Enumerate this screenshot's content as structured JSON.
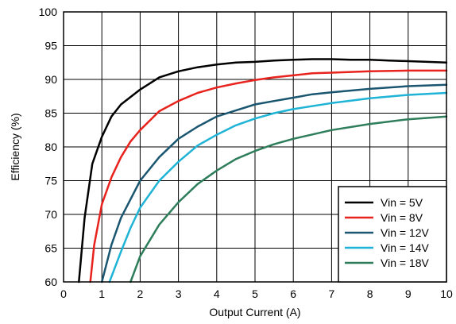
{
  "chart_data": {
    "type": "line",
    "title": "",
    "xlabel": "Output Current (A)",
    "ylabel": "Efficiency (%)",
    "xlim": [
      0,
      10
    ],
    "ylim": [
      60,
      100
    ],
    "x_ticks": [
      "0",
      "1",
      "2",
      "3",
      "4",
      "5",
      "6",
      "7",
      "8",
      "9",
      "10"
    ],
    "y_ticks": [
      "60",
      "65",
      "70",
      "75",
      "80",
      "85",
      "90",
      "95",
      "100"
    ],
    "grid": true,
    "legend_position": "bottom-right",
    "series": [
      {
        "name": "Vin = 5V",
        "color": "#000000",
        "x": [
          0.4,
          0.55,
          0.75,
          1.0,
          1.25,
          1.5,
          2.0,
          2.5,
          3.0,
          3.5,
          4.0,
          4.5,
          5.0,
          5.5,
          6.0,
          6.5,
          7.0,
          7.5,
          8.0,
          8.5,
          9.0,
          9.5,
          10.0
        ],
        "y": [
          60.0,
          69.5,
          77.5,
          81.5,
          84.5,
          86.3,
          88.5,
          90.3,
          91.2,
          91.8,
          92.2,
          92.5,
          92.6,
          92.8,
          92.9,
          93.0,
          93.0,
          92.9,
          92.9,
          92.8,
          92.7,
          92.6,
          92.5
        ]
      },
      {
        "name": "Vin = 8V",
        "color": "#e8221c",
        "x": [
          0.7,
          0.8,
          1.0,
          1.25,
          1.5,
          1.75,
          2.0,
          2.5,
          3.0,
          3.5,
          4.0,
          4.5,
          5.0,
          5.5,
          6.0,
          6.5,
          7.0,
          8.0,
          9.0,
          10.0
        ],
        "y": [
          60.0,
          65.5,
          71.5,
          75.5,
          78.5,
          80.8,
          82.5,
          85.3,
          86.8,
          88.0,
          88.8,
          89.4,
          89.9,
          90.3,
          90.6,
          90.9,
          91.0,
          91.2,
          91.3,
          91.3
        ]
      },
      {
        "name": "Vin = 12V",
        "color": "#1a5670",
        "x": [
          1.0,
          1.25,
          1.5,
          2.0,
          2.5,
          3.0,
          3.5,
          4.0,
          4.5,
          5.0,
          5.5,
          6.0,
          6.5,
          7.0,
          8.0,
          9.0,
          10.0
        ],
        "y": [
          60.0,
          65.5,
          69.5,
          75.0,
          78.5,
          81.2,
          83.0,
          84.5,
          85.4,
          86.3,
          86.8,
          87.3,
          87.8,
          88.1,
          88.6,
          89.0,
          89.2
        ]
      },
      {
        "name": "Vin = 14V",
        "color": "#1fb3d6",
        "x": [
          1.2,
          1.5,
          1.75,
          2.0,
          2.5,
          3.0,
          3.5,
          4.0,
          4.5,
          5.0,
          5.5,
          6.0,
          7.0,
          8.0,
          9.0,
          10.0
        ],
        "y": [
          60.0,
          64.5,
          68.0,
          71.0,
          75.0,
          77.8,
          80.2,
          81.8,
          83.2,
          84.2,
          85.0,
          85.6,
          86.5,
          87.2,
          87.7,
          88.0
        ]
      },
      {
        "name": "Vin = 18V",
        "color": "#2e7d5b",
        "x": [
          1.75,
          2.0,
          2.5,
          3.0,
          3.5,
          4.0,
          4.5,
          5.0,
          5.5,
          6.0,
          7.0,
          8.0,
          9.0,
          10.0
        ],
        "y": [
          60.0,
          63.8,
          68.5,
          71.8,
          74.5,
          76.5,
          78.2,
          79.4,
          80.4,
          81.2,
          82.5,
          83.4,
          84.1,
          84.5
        ]
      }
    ]
  }
}
